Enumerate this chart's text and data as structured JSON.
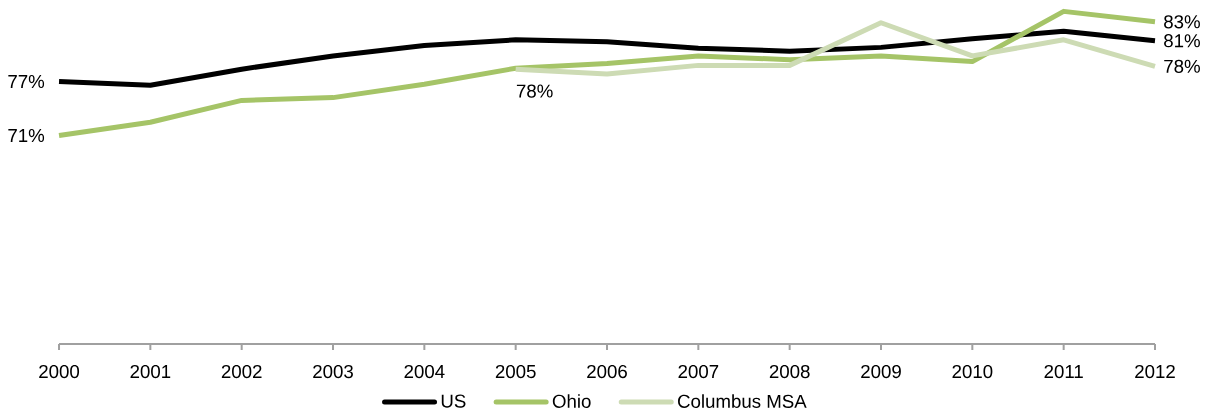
{
  "chart_data": {
    "type": "line",
    "categories": [
      "2000",
      "2001",
      "2002",
      "2003",
      "2004",
      "2005",
      "2006",
      "2007",
      "2008",
      "2009",
      "2010",
      "2011",
      "2012"
    ],
    "series": [
      {
        "name": "US",
        "color": "#000000",
        "values": [
          76.7,
          76.3,
          78.0,
          79.4,
          80.5,
          81.1,
          80.9,
          80.2,
          79.9,
          80.3,
          81.2,
          82.0,
          81.0
        ],
        "value_labels": [
          "77%",
          null,
          null,
          null,
          null,
          null,
          null,
          null,
          null,
          null,
          null,
          null,
          "81%"
        ]
      },
      {
        "name": "Ohio",
        "color": "#a5c467",
        "values": [
          71.0,
          72.4,
          74.7,
          75.0,
          76.4,
          78.1,
          78.6,
          79.4,
          79.0,
          79.4,
          78.8,
          84.1,
          83.0
        ],
        "value_labels": [
          "71%",
          null,
          null,
          null,
          null,
          null,
          null,
          null,
          null,
          null,
          null,
          null,
          "83%"
        ]
      },
      {
        "name": "Columbus MSA",
        "color": "#cddbb4",
        "values": [
          null,
          null,
          null,
          null,
          null,
          78.0,
          77.5,
          78.4,
          78.4,
          82.9,
          79.4,
          81.1,
          78.3
        ],
        "value_labels": [
          null,
          null,
          null,
          null,
          null,
          "78%",
          null,
          null,
          null,
          null,
          null,
          null,
          "78%"
        ]
      }
    ],
    "legend": "bottom",
    "tick_labels": "x",
    "line_style": "solid",
    "marker": "none"
  }
}
